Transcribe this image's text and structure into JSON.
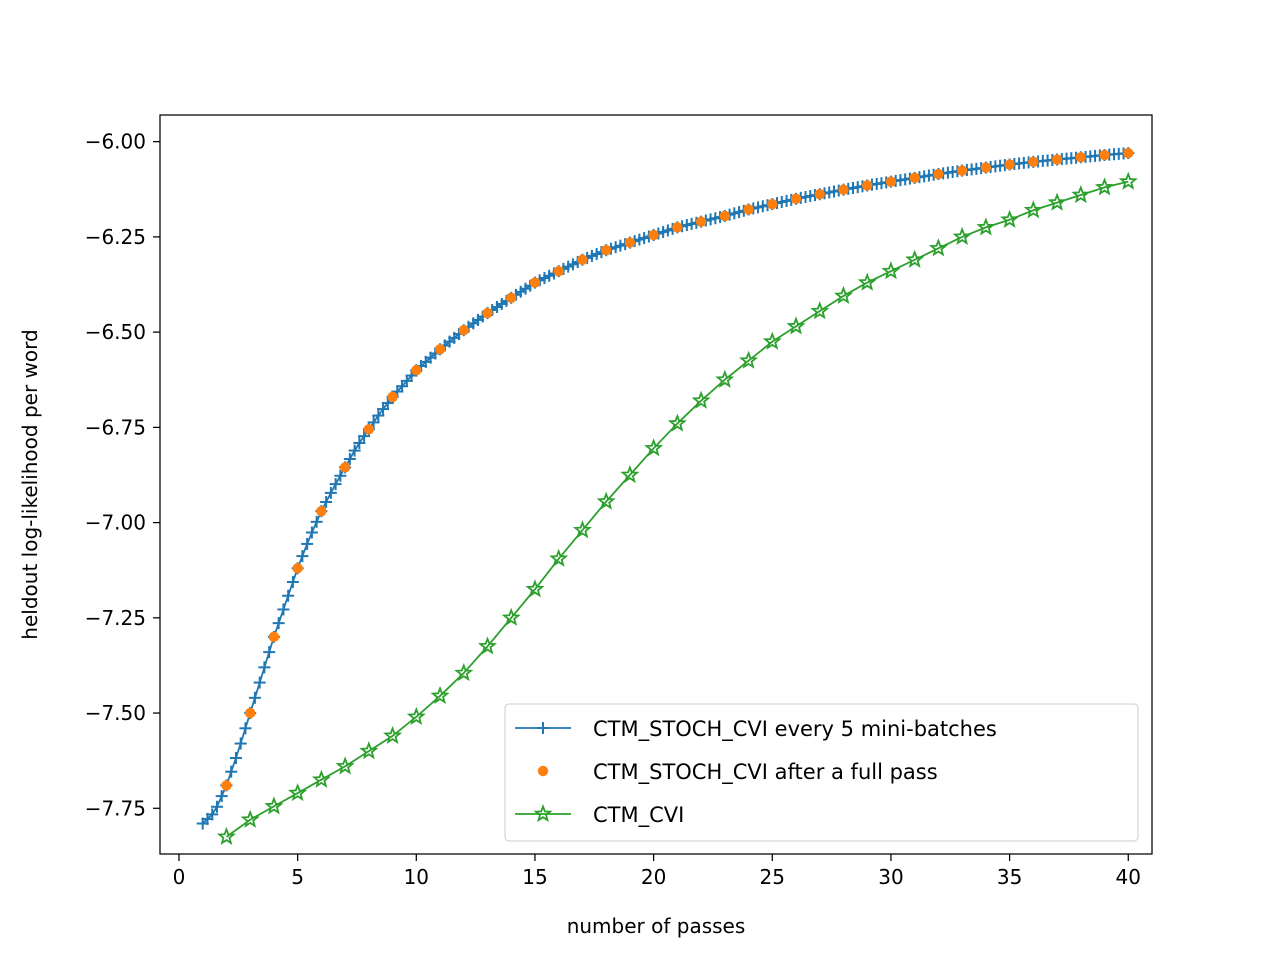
{
  "chart_data": {
    "type": "line",
    "title": "",
    "xlabel": "number of passes",
    "ylabel": "heldout log-likelihood per word",
    "xlim": [
      -0.8,
      41.0
    ],
    "ylim": [
      -7.87,
      -5.93
    ],
    "xticks": [
      0,
      5,
      10,
      15,
      20,
      25,
      30,
      35,
      40
    ],
    "xtick_labels": [
      "0",
      "5",
      "10",
      "15",
      "20",
      "25",
      "30",
      "35",
      "40"
    ],
    "yticks": [
      -7.75,
      -7.5,
      -7.25,
      -7.0,
      -6.75,
      -6.5,
      -6.25,
      -6.0
    ],
    "ytick_labels": [
      "−7.75",
      "−7.50",
      "−7.25",
      "−7.00",
      "−6.75",
      "−6.50",
      "−6.25",
      "−6.00"
    ],
    "grid": false,
    "legend_position": "lower-right",
    "series": [
      {
        "name": "CTM_STOCH_CVI every 5 mini-batches",
        "color": "#1f77b4",
        "marker": "plus",
        "line": true,
        "sampling": "dense, every 0.2 passes from 1.0 to 40.0",
        "x": [
          1.0,
          1.5,
          2.0,
          2.5,
          3.0,
          3.5,
          4.0,
          4.5,
          5.0,
          5.5,
          6.0,
          6.5,
          7.0,
          7.5,
          8.0,
          8.5,
          9.0,
          9.5,
          10.0,
          11.0,
          12.0,
          13.0,
          14.0,
          15.0,
          16.0,
          17.0,
          18.0,
          19.0,
          20.0,
          21.0,
          22.0,
          23.0,
          24.0,
          25.0,
          26.0,
          27.0,
          28.0,
          29.0,
          30.0,
          31.0,
          32.0,
          33.0,
          34.0,
          35.0,
          36.0,
          37.0,
          38.0,
          39.0,
          40.0
        ],
        "values": [
          -7.79,
          -7.76,
          -7.69,
          -7.6,
          -7.5,
          -7.4,
          -7.3,
          -7.21,
          -7.12,
          -7.04,
          -6.97,
          -6.91,
          -6.855,
          -6.8,
          -6.755,
          -6.71,
          -6.67,
          -6.635,
          -6.6,
          -6.545,
          -6.495,
          -6.45,
          -6.41,
          -6.37,
          -6.34,
          -6.31,
          -6.285,
          -6.265,
          -6.245,
          -6.225,
          -6.21,
          -6.195,
          -6.178,
          -6.164,
          -6.15,
          -6.138,
          -6.126,
          -6.115,
          -6.105,
          -6.095,
          -6.085,
          -6.076,
          -6.068,
          -6.06,
          -6.053,
          -6.047,
          -6.041,
          -6.035,
          -6.03
        ]
      },
      {
        "name": "CTM_STOCH_CVI after a full pass",
        "color": "#ff7f0e",
        "marker": "circle",
        "line": false,
        "x": [
          2,
          3,
          4,
          5,
          6,
          7,
          8,
          9,
          10,
          11,
          12,
          13,
          14,
          15,
          16,
          17,
          18,
          19,
          20,
          21,
          22,
          23,
          24,
          25,
          26,
          27,
          28,
          29,
          30,
          31,
          32,
          33,
          34,
          35,
          36,
          37,
          38,
          39,
          40
        ],
        "values": [
          -7.69,
          -7.5,
          -7.3,
          -7.12,
          -6.97,
          -6.855,
          -6.755,
          -6.67,
          -6.6,
          -6.545,
          -6.495,
          -6.45,
          -6.41,
          -6.37,
          -6.34,
          -6.31,
          -6.285,
          -6.265,
          -6.245,
          -6.225,
          -6.21,
          -6.195,
          -6.178,
          -6.164,
          -6.15,
          -6.138,
          -6.126,
          -6.115,
          -6.105,
          -6.095,
          -6.085,
          -6.076,
          -6.068,
          -6.06,
          -6.053,
          -6.047,
          -6.041,
          -6.035,
          -6.03
        ]
      },
      {
        "name": "CTM_CVI",
        "color": "#2ca02c",
        "marker": "star",
        "line": true,
        "x": [
          2,
          3,
          4,
          5,
          6,
          7,
          8,
          9,
          10,
          11,
          12,
          13,
          14,
          15,
          16,
          17,
          18,
          19,
          20,
          21,
          22,
          23,
          24,
          25,
          26,
          27,
          28,
          29,
          30,
          31,
          32,
          33,
          34,
          35,
          36,
          37,
          38,
          39,
          40
        ],
        "values": [
          -7.825,
          -7.78,
          -7.745,
          -7.71,
          -7.675,
          -7.64,
          -7.6,
          -7.56,
          -7.51,
          -7.455,
          -7.395,
          -7.325,
          -7.25,
          -7.175,
          -7.095,
          -7.02,
          -6.945,
          -6.875,
          -6.805,
          -6.74,
          -6.68,
          -6.625,
          -6.575,
          -6.525,
          -6.485,
          -6.445,
          -6.405,
          -6.37,
          -6.34,
          -6.31,
          -6.28,
          -6.25,
          -6.225,
          -6.205,
          -6.18,
          -6.16,
          -6.14,
          -6.12,
          -6.105
        ]
      }
    ]
  }
}
